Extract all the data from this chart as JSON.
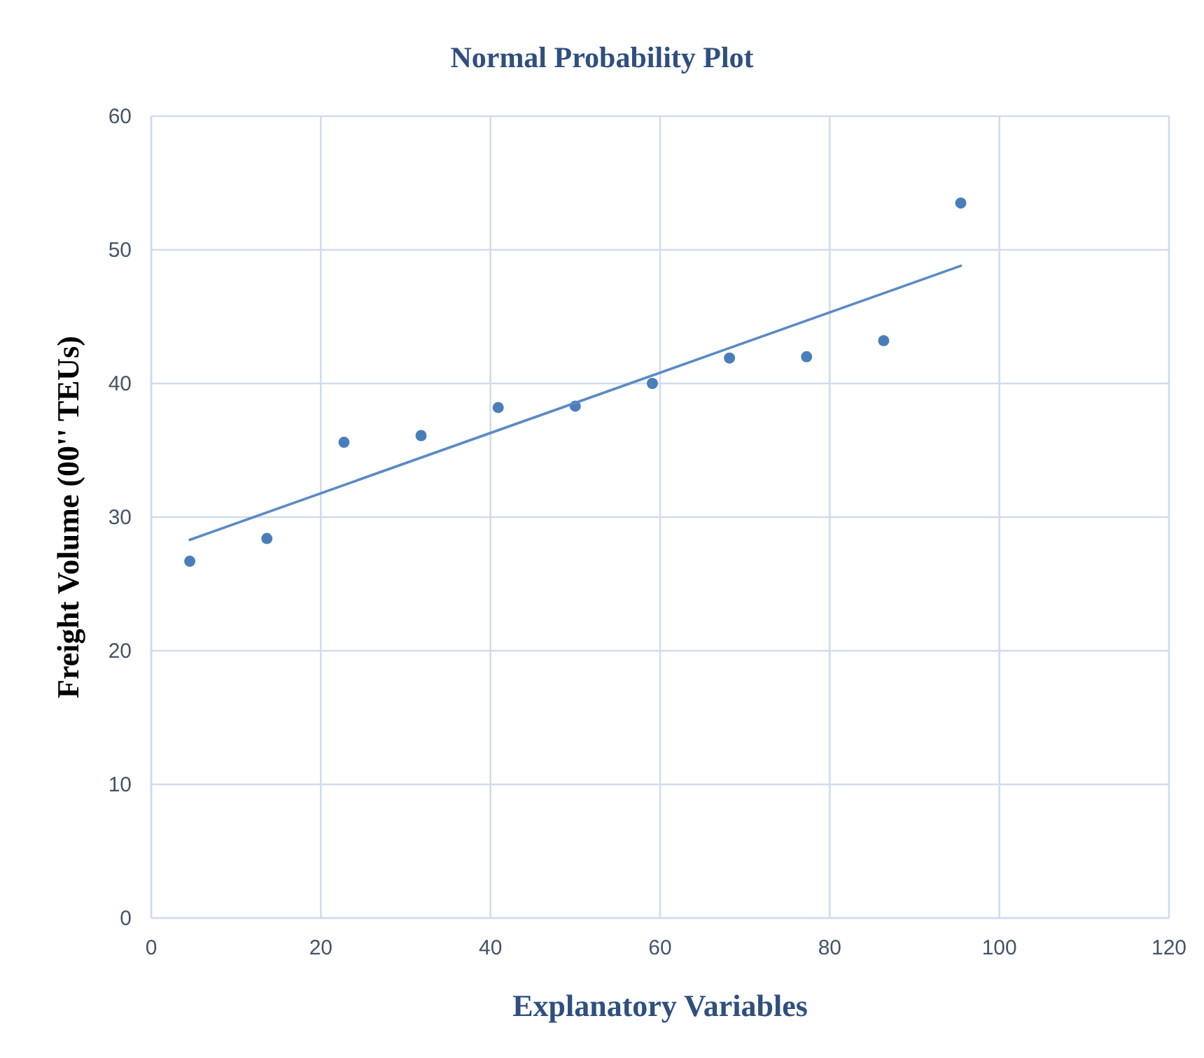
{
  "chart_data": {
    "type": "scatter",
    "title": "Normal Probability Plot",
    "xlabel": "Explanatory Variables",
    "ylabel": "Freight Volume (00'' TEUs)",
    "xlim": [
      0,
      120
    ],
    "xticks": [
      0,
      20,
      40,
      60,
      80,
      100,
      120
    ],
    "ylim": [
      0,
      60
    ],
    "yticks": [
      0,
      10,
      20,
      30,
      40,
      50,
      60
    ],
    "grid": true,
    "series": [
      {
        "marker": "circle",
        "color": "#4a7ebb",
        "x": [
          4.55,
          13.64,
          22.73,
          31.82,
          40.91,
          50,
          59.09,
          68.18,
          77.27,
          86.36,
          95.45
        ],
        "values": [
          26.7,
          28.4,
          35.6,
          36.1,
          38.2,
          38.3,
          40.0,
          41.9,
          42.0,
          43.2,
          53.5
        ]
      },
      {
        "type": "line",
        "line_style": "solid",
        "color": "#5b8ac6",
        "x": [
          4.55,
          95.45
        ],
        "values": [
          28.3,
          48.8
        ]
      }
    ]
  }
}
